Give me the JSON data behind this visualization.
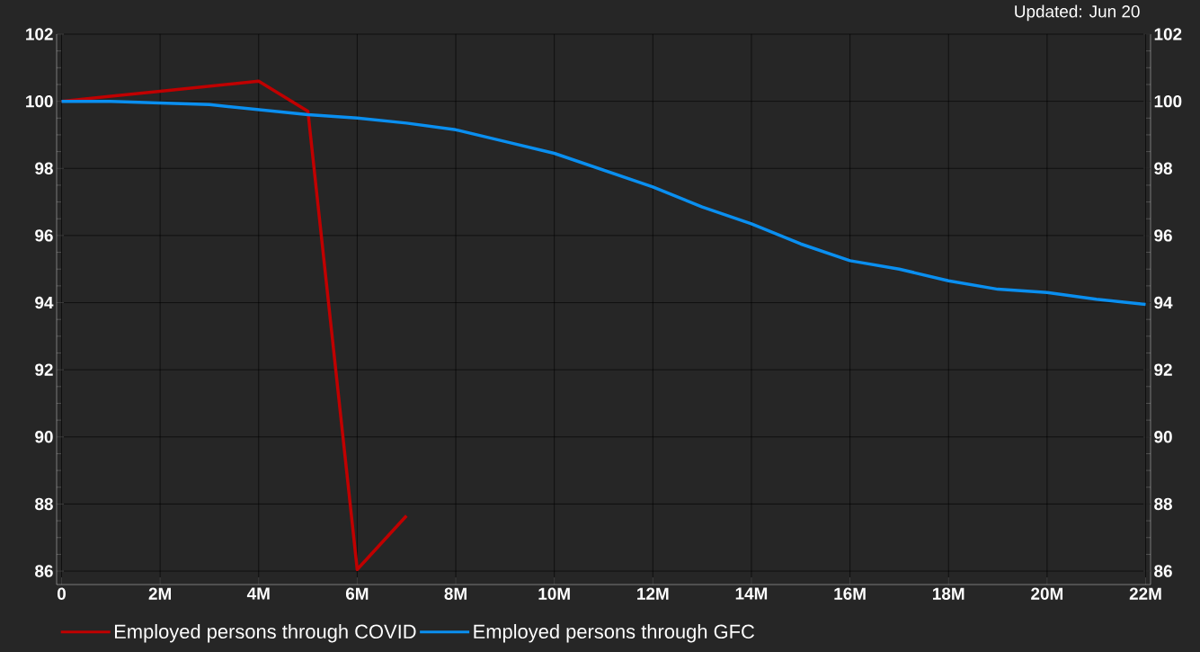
{
  "chart_data": {
    "type": "line",
    "annotations": [
      "Updated: Jun 20"
    ],
    "x": [
      0,
      1,
      2,
      3,
      4,
      5,
      6,
      7,
      8,
      9,
      10,
      11,
      12,
      13,
      14,
      15,
      16,
      17,
      18,
      19,
      20,
      21,
      22
    ],
    "series": [
      {
        "name": "Employed persons through COVID",
        "color": "#c00000",
        "x": [
          0,
          1,
          2,
          3,
          4,
          5,
          6,
          7
        ],
        "values": [
          100,
          100.15,
          100.3,
          100.45,
          100.6,
          99.7,
          86.05,
          87.65
        ]
      },
      {
        "name": "Employed persons through GFC",
        "color": "#0a8ff0",
        "values": [
          100,
          100,
          99.95,
          99.9,
          99.75,
          99.6,
          99.5,
          99.35,
          99.15,
          98.8,
          98.45,
          97.95,
          97.45,
          96.85,
          96.35,
          95.75,
          95.25,
          95,
          94.65,
          94.4,
          94.3,
          94.1,
          93.95
        ]
      }
    ],
    "xlim": [
      -0.1,
      22.1
    ],
    "xticks": [
      0,
      {
        "value": 2,
        "label": "2M"
      },
      {
        "value": 4,
        "label": "4M"
      },
      {
        "value": 6,
        "label": "6M"
      },
      {
        "value": 8,
        "label": "8M"
      },
      {
        "value": 10,
        "label": "10M"
      },
      {
        "value": 12,
        "label": "12M"
      },
      {
        "value": 14,
        "label": "14M"
      },
      {
        "value": 16,
        "label": "16M"
      },
      {
        "value": 18,
        "label": "18M"
      },
      {
        "value": 20,
        "label": "20M"
      },
      {
        "value": 22,
        "label": "22M"
      }
    ],
    "ylim": [
      85.6,
      102
    ],
    "yticks": [
      86,
      88,
      90,
      92,
      94,
      96,
      98,
      100,
      102
    ],
    "y2lim": [
      85.6,
      102
    ],
    "y2ticks": [
      86,
      88,
      90,
      92,
      94,
      96,
      98,
      100,
      102
    ],
    "grid": true,
    "legend": "bottom",
    "line_style": "solid",
    "marker": "none"
  }
}
